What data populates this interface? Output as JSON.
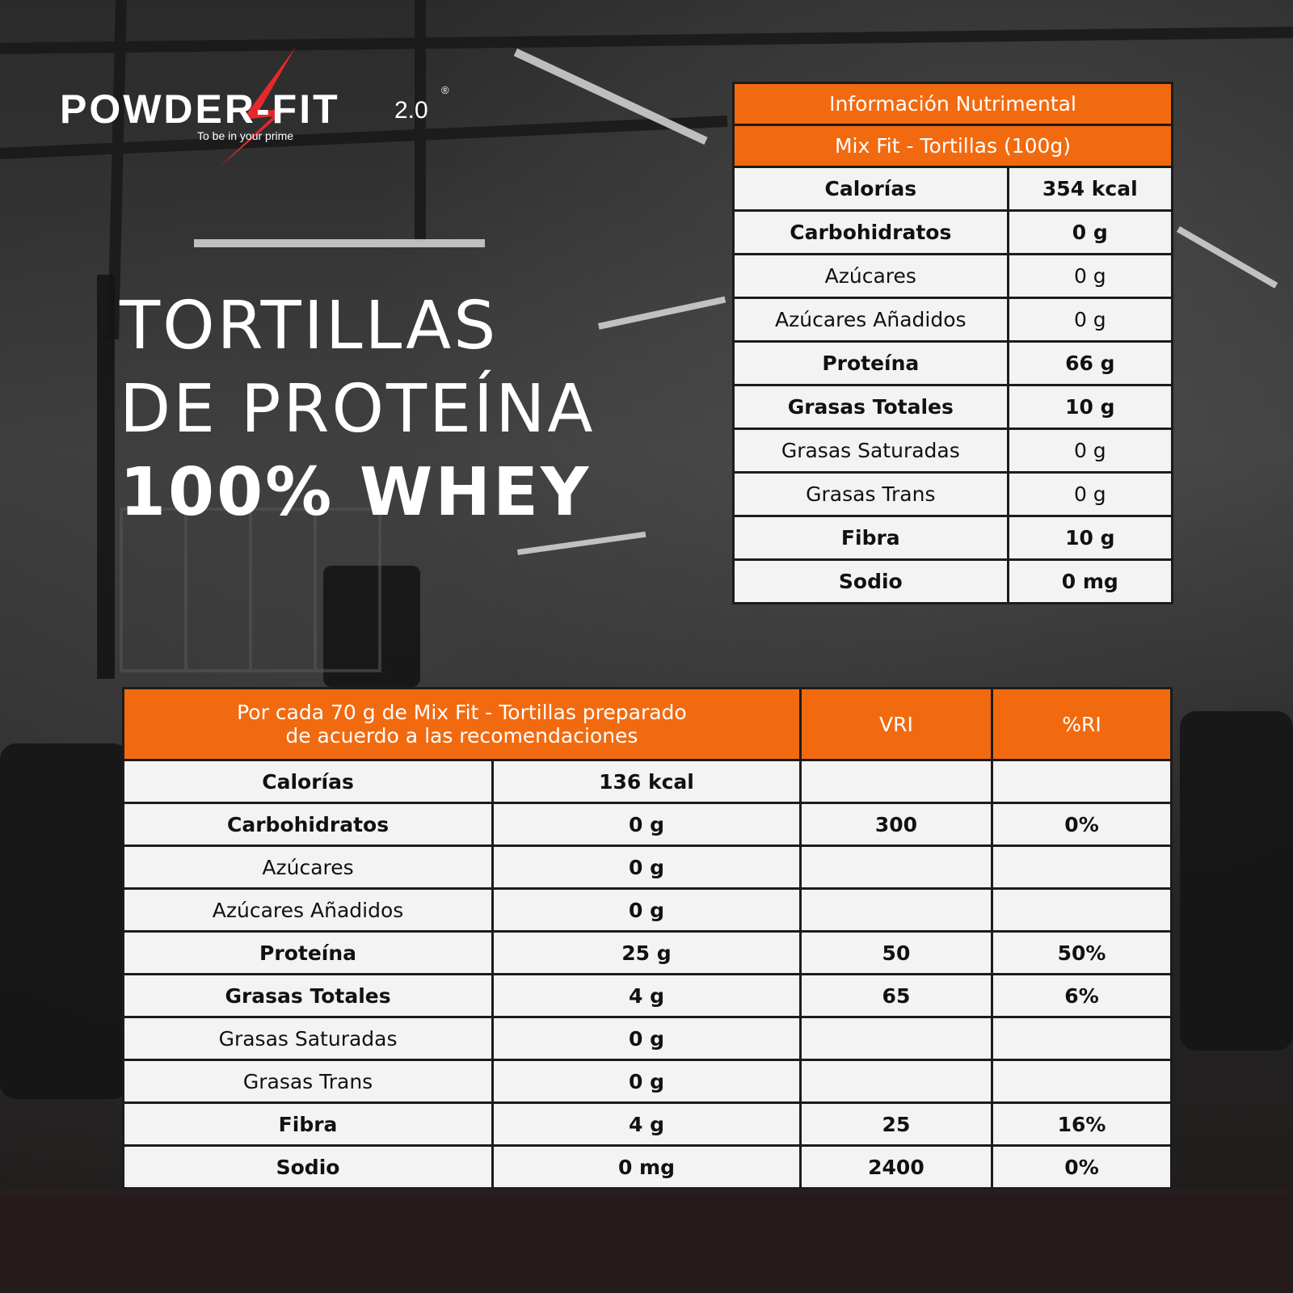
{
  "brand": {
    "name": "POWDER-FIT",
    "version": "2.0",
    "registered": "®",
    "tagline": "To be in your prime",
    "accent_color": "#f26a0f"
  },
  "headline": {
    "line1": "TORTILLAS",
    "line2": "DE PROTEÍNA",
    "line3": "100% WHEY"
  },
  "top_table": {
    "title": "Información Nutrimental",
    "subtitle": "Mix Fit - Tortillas (100g)",
    "rows": [
      {
        "label": "Calorías",
        "value": "354 kcal",
        "bold": true
      },
      {
        "label": "Carbohidratos",
        "value": "0 g",
        "bold": true
      },
      {
        "label": "Azúcares",
        "value": "0 g",
        "bold": false
      },
      {
        "label": "Azúcares Añadidos",
        "value": "0 g",
        "bold": false
      },
      {
        "label": "Proteína",
        "value": "66 g",
        "bold": true
      },
      {
        "label": "Grasas Totales",
        "value": "10 g",
        "bold": true
      },
      {
        "label": "Grasas Saturadas",
        "value": "0 g",
        "bold": false
      },
      {
        "label": "Grasas Trans",
        "value": "0 g",
        "bold": false
      },
      {
        "label": "Fibra",
        "value": "10 g",
        "bold": true
      },
      {
        "label": "Sodio",
        "value": "0 mg",
        "bold": true
      }
    ]
  },
  "bottom_table": {
    "header_line1": "Por cada 70 g de Mix Fit - Tortillas preparado",
    "header_line2": "de acuerdo a las recomendaciones",
    "col_vri": "VRI",
    "col_ri": "%RI",
    "rows": [
      {
        "label": "Calorías",
        "value": "136 kcal",
        "vri": "",
        "ri": "",
        "bold": true
      },
      {
        "label": "Carbohidratos",
        "value": "0 g",
        "vri": "300",
        "ri": "0%",
        "bold": true
      },
      {
        "label": "Azúcares",
        "value": "0 g",
        "vri": "",
        "ri": "",
        "bold": false
      },
      {
        "label": "Azúcares Añadidos",
        "value": "0 g",
        "vri": "",
        "ri": "",
        "bold": false
      },
      {
        "label": "Proteína",
        "value": "25 g",
        "vri": "50",
        "ri": "50%",
        "bold": true
      },
      {
        "label": "Grasas Totales",
        "value": "4 g",
        "vri": "65",
        "ri": "6%",
        "bold": true
      },
      {
        "label": "Grasas Saturadas",
        "value": "0 g",
        "vri": "",
        "ri": "",
        "bold": false
      },
      {
        "label": "Grasas Trans",
        "value": "0 g",
        "vri": "",
        "ri": "",
        "bold": false
      },
      {
        "label": "Fibra",
        "value": "4 g",
        "vri": "25",
        "ri": "16%",
        "bold": true
      },
      {
        "label": "Sodio",
        "value": "0 mg",
        "vri": "2400",
        "ri": "0%",
        "bold": true
      }
    ]
  }
}
